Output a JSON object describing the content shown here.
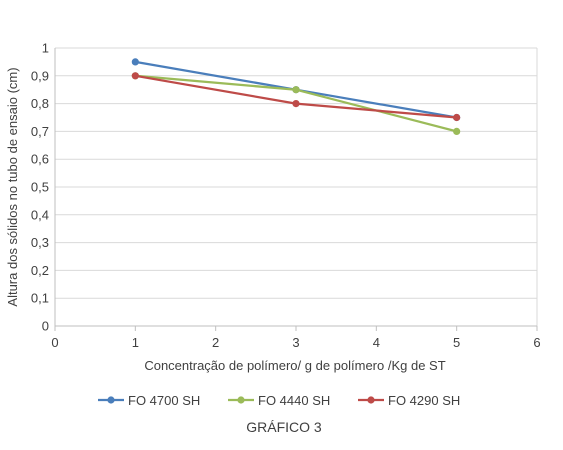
{
  "chart_data": {
    "type": "scatter",
    "mode": "lines+markers",
    "xlabel": "Concentração de polímero/ g de polímero /Kg de ST",
    "ylabel": "Altura dos sólidos no tubo de ensaio (cm)",
    "xlim": [
      0,
      6
    ],
    "ylim": [
      0,
      1
    ],
    "x_ticks": [
      "0",
      "1",
      "2",
      "3",
      "4",
      "5",
      "6"
    ],
    "y_ticks": [
      "0",
      "0,1",
      "0,2",
      "0,3",
      "0,4",
      "0,5",
      "0,6",
      "0,7",
      "0,8",
      "0,9",
      "1"
    ],
    "grid": "horizontal",
    "legend_position": "bottom",
    "series": [
      {
        "name": "FO 4700 SH",
        "color": "#4a7ebb",
        "x": [
          1,
          3,
          5
        ],
        "y": [
          0.95,
          0.85,
          0.75
        ]
      },
      {
        "name": "FO 4440 SH",
        "color": "#9bbb59",
        "x": [
          1,
          3,
          5
        ],
        "y": [
          0.9,
          0.85,
          0.7
        ]
      },
      {
        "name": "FO 4290 SH",
        "color": "#be4b48",
        "x": [
          1,
          3,
          5
        ],
        "y": [
          0.9,
          0.8,
          0.75
        ]
      }
    ],
    "caption": "GRÁFICO 3"
  }
}
